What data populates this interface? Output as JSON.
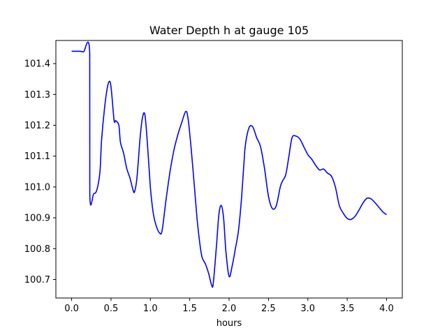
{
  "chart_data": {
    "type": "line",
    "title": "Water Depth h at gauge 105",
    "xlabel": "hours",
    "ylabel": "",
    "xlim": [
      -0.2,
      4.2
    ],
    "ylim": [
      100.64,
      101.475
    ],
    "xticks": [
      0.0,
      0.5,
      1.0,
      1.5,
      2.0,
      2.5,
      3.0,
      3.5,
      4.0
    ],
    "xtick_labels": [
      "0.0",
      "0.5",
      "1.0",
      "1.5",
      "2.0",
      "2.5",
      "3.0",
      "3.5",
      "4.0"
    ],
    "yticks": [
      100.7,
      100.8,
      100.9,
      101.0,
      101.1,
      101.2,
      101.3,
      101.4
    ],
    "ytick_labels": [
      "100.7",
      "100.8",
      "100.9",
      "101.0",
      "101.1",
      "101.2",
      "101.3",
      "101.4"
    ],
    "grid": false,
    "series": [
      {
        "color": "#0000ff",
        "x": [
          0.0,
          0.1,
          0.15,
          0.23,
          0.231,
          0.28,
          0.32,
          0.36,
          0.38,
          0.42,
          0.46,
          0.49,
          0.51,
          0.54,
          0.56,
          0.6,
          0.62,
          0.66,
          0.7,
          0.74,
          0.78,
          0.8,
          0.83,
          0.87,
          0.9,
          0.93,
          0.96,
          1.0,
          1.04,
          1.08,
          1.12,
          1.15,
          1.2,
          1.25,
          1.3,
          1.35,
          1.4,
          1.45,
          1.48,
          1.52,
          1.56,
          1.6,
          1.65,
          1.7,
          1.74,
          1.78,
          1.8,
          1.84,
          1.87,
          1.9,
          1.93,
          1.96,
          2.0,
          2.04,
          2.08,
          2.12,
          2.16,
          2.2,
          2.25,
          2.3,
          2.35,
          2.4,
          2.45,
          2.5,
          2.55,
          2.6,
          2.65,
          2.68,
          2.72,
          2.76,
          2.8,
          2.85,
          2.9,
          2.95,
          3.0,
          3.05,
          3.1,
          3.15,
          3.2,
          3.25,
          3.3,
          3.35,
          3.4,
          3.45,
          3.5,
          3.55,
          3.6,
          3.65,
          3.7,
          3.75,
          3.8,
          3.85,
          3.9,
          3.95,
          4.0
        ],
        "y": [
          101.44,
          101.44,
          101.438,
          101.435,
          100.975,
          100.978,
          100.99,
          101.05,
          101.15,
          101.26,
          101.33,
          101.34,
          101.3,
          101.215,
          101.215,
          101.2,
          101.145,
          101.11,
          101.06,
          101.03,
          100.99,
          100.985,
          101.03,
          101.16,
          101.225,
          101.235,
          101.15,
          101.0,
          100.91,
          100.87,
          100.85,
          100.86,
          100.96,
          101.05,
          101.12,
          101.17,
          101.21,
          101.245,
          101.22,
          101.12,
          101.0,
          100.88,
          100.78,
          100.75,
          100.72,
          100.68,
          100.69,
          100.81,
          100.91,
          100.94,
          100.9,
          100.79,
          100.71,
          100.745,
          100.8,
          100.86,
          100.97,
          101.12,
          101.19,
          101.195,
          101.16,
          101.13,
          101.06,
          100.97,
          100.93,
          100.94,
          101.0,
          101.02,
          101.04,
          101.1,
          101.16,
          101.165,
          101.155,
          101.13,
          101.105,
          101.09,
          101.07,
          101.055,
          101.058,
          101.045,
          101.035,
          101.0,
          100.94,
          100.915,
          100.898,
          100.895,
          100.905,
          100.925,
          100.948,
          100.963,
          100.962,
          100.95,
          100.935,
          100.92,
          100.91
        ]
      }
    ]
  }
}
